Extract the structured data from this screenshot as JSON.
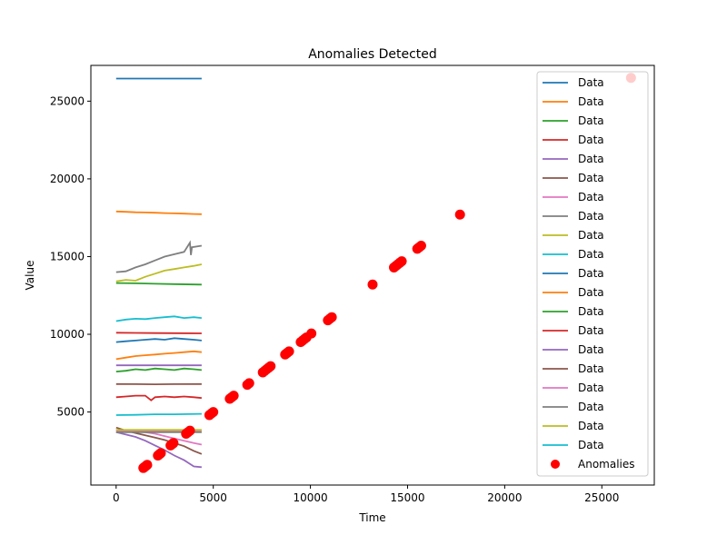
{
  "chart_data": {
    "type": "line",
    "title": "Anomalies Detected",
    "xlabel": "Time",
    "ylabel": "Value",
    "xlim": [
      -1300,
      27700
    ],
    "ylim": [
      300,
      27300
    ],
    "xticks": [
      0,
      5000,
      10000,
      15000,
      20000,
      25000
    ],
    "yticks": [
      5000,
      10000,
      15000,
      20000,
      25000
    ],
    "grid": false,
    "legend_position": "top-right",
    "series": [
      {
        "name": "Data",
        "color": "#1f77b4",
        "x": [
          0,
          4400
        ],
        "y": [
          26450,
          26450
        ]
      },
      {
        "name": "Data",
        "color": "#ff7f0e",
        "x": [
          0,
          500,
          1000,
          1500,
          2000,
          2500,
          3000,
          3500,
          4000,
          4400
        ],
        "y": [
          17900,
          17880,
          17850,
          17840,
          17820,
          17800,
          17780,
          17760,
          17740,
          17730
        ]
      },
      {
        "name": "Data",
        "color": "#2ca02c",
        "x": [
          0,
          1000,
          2000,
          3000,
          4400
        ],
        "y": [
          13300,
          13280,
          13250,
          13230,
          13200
        ]
      },
      {
        "name": "Data",
        "color": "#d62728",
        "x": [
          0,
          1000,
          2000,
          3000,
          4400
        ],
        "y": [
          10100,
          10090,
          10080,
          10070,
          10060
        ]
      },
      {
        "name": "Data",
        "color": "#9467bd",
        "x": [
          0,
          500,
          1000,
          1500,
          2000,
          2500,
          3000,
          3500,
          4000,
          4400
        ],
        "y": [
          3700,
          3550,
          3400,
          3150,
          2850,
          2550,
          2200,
          1900,
          1500,
          1450
        ]
      },
      {
        "name": "Data",
        "color": "#8c564b",
        "x": [
          0,
          1000,
          2000,
          3000,
          4400
        ],
        "y": [
          6800,
          6790,
          6780,
          6790,
          6800
        ]
      },
      {
        "name": "Data",
        "color": "#e377c2",
        "x": [
          0,
          500,
          1000,
          1500,
          2000,
          2500,
          3000,
          3500,
          4000,
          4400
        ],
        "y": [
          3850,
          3800,
          3750,
          3700,
          3600,
          3450,
          3300,
          3150,
          3000,
          2900
        ]
      },
      {
        "name": "Data",
        "color": "#7f7f7f",
        "x": [
          0,
          500,
          1000,
          1500,
          2000,
          2500,
          3000,
          3500,
          3800,
          3850,
          3900,
          4400
        ],
        "y": [
          14000,
          14050,
          14300,
          14500,
          14750,
          15000,
          15150,
          15300,
          15900,
          15100,
          15600,
          15700
        ]
      },
      {
        "name": "Data",
        "color": "#bcbd22",
        "x": [
          0,
          500,
          1000,
          1500,
          2000,
          2500,
          3000,
          3500,
          4000,
          4400
        ],
        "y": [
          13400,
          13500,
          13450,
          13700,
          13900,
          14100,
          14200,
          14300,
          14400,
          14500
        ]
      },
      {
        "name": "Data",
        "color": "#17becf",
        "x": [
          0,
          500,
          1000,
          1500,
          2000,
          2500,
          3000,
          3500,
          4000,
          4400
        ],
        "y": [
          10850,
          10950,
          11000,
          10980,
          11050,
          11100,
          11150,
          11050,
          11100,
          11050
        ]
      },
      {
        "name": "Data",
        "color": "#1f77b4",
        "x": [
          0,
          500,
          1000,
          1500,
          2000,
          2500,
          3000,
          3500,
          4000,
          4400
        ],
        "y": [
          9500,
          9550,
          9600,
          9650,
          9700,
          9650,
          9750,
          9700,
          9650,
          9600
        ]
      },
      {
        "name": "Data",
        "color": "#ff7f0e",
        "x": [
          0,
          500,
          1000,
          1500,
          2000,
          2500,
          3000,
          3500,
          4000,
          4400
        ],
        "y": [
          8400,
          8500,
          8600,
          8650,
          8700,
          8750,
          8800,
          8850,
          8900,
          8850
        ]
      },
      {
        "name": "Data",
        "color": "#2ca02c",
        "x": [
          0,
          500,
          1000,
          1500,
          2000,
          2500,
          3000,
          3500,
          4000,
          4400
        ],
        "y": [
          7600,
          7650,
          7750,
          7700,
          7800,
          7750,
          7700,
          7800,
          7750,
          7700
        ]
      },
      {
        "name": "Data",
        "color": "#d62728",
        "x": [
          0,
          500,
          1000,
          1500,
          1800,
          2000,
          2500,
          3000,
          3500,
          4000,
          4400
        ],
        "y": [
          5950,
          6000,
          6050,
          6050,
          5750,
          5950,
          6000,
          5950,
          6000,
          5950,
          5900
        ]
      },
      {
        "name": "Data",
        "color": "#9467bd",
        "x": [
          0,
          1000,
          2000,
          3000,
          4400
        ],
        "y": [
          8000,
          8000,
          8000,
          8000,
          8000
        ]
      },
      {
        "name": "Data",
        "color": "#8c564b",
        "x": [
          0,
          500,
          1000,
          1500,
          2000,
          2500,
          3000,
          3500,
          4000,
          4400
        ],
        "y": [
          4000,
          3800,
          3650,
          3500,
          3350,
          3200,
          3000,
          2800,
          2500,
          2300
        ]
      },
      {
        "name": "Data",
        "color": "#e377c2",
        "x": [
          0,
          1000,
          2000,
          3000,
          4400
        ],
        "y": [
          3800,
          3800,
          3800,
          3800,
          3800
        ]
      },
      {
        "name": "Data",
        "color": "#7f7f7f",
        "x": [
          0,
          1000,
          2000,
          3000,
          4400
        ],
        "y": [
          3700,
          3700,
          3700,
          3700,
          3700
        ]
      },
      {
        "name": "Data",
        "color": "#bcbd22",
        "x": [
          0,
          1000,
          2000,
          3000,
          4400
        ],
        "y": [
          3850,
          3850,
          3850,
          3850,
          3850
        ]
      },
      {
        "name": "Data",
        "color": "#17becf",
        "x": [
          0,
          1000,
          2000,
          3000,
          4400
        ],
        "y": [
          4800,
          4820,
          4850,
          4850,
          4880
        ]
      }
    ],
    "anomalies": {
      "name": "Anomalies",
      "color": "#ff0000",
      "points": [
        [
          1400,
          1400
        ],
        [
          1450,
          1450
        ],
        [
          1500,
          1500
        ],
        [
          1550,
          1550
        ],
        [
          1600,
          1600
        ],
        [
          2150,
          2200
        ],
        [
          2200,
          2250
        ],
        [
          2250,
          2300
        ],
        [
          2300,
          2350
        ],
        [
          2800,
          2850
        ],
        [
          2850,
          2900
        ],
        [
          2900,
          2950
        ],
        [
          2950,
          3000
        ],
        [
          3600,
          3600
        ],
        [
          3700,
          3700
        ],
        [
          3800,
          3800
        ],
        [
          4800,
          4800
        ],
        [
          4900,
          4900
        ],
        [
          5000,
          5000
        ],
        [
          5850,
          5850
        ],
        [
          5950,
          5950
        ],
        [
          6050,
          6050
        ],
        [
          6750,
          6750
        ],
        [
          6850,
          6850
        ],
        [
          7550,
          7550
        ],
        [
          7650,
          7650
        ],
        [
          7750,
          7750
        ],
        [
          7850,
          7850
        ],
        [
          7950,
          7950
        ],
        [
          8700,
          8700
        ],
        [
          8800,
          8800
        ],
        [
          8900,
          8900
        ],
        [
          9500,
          9500
        ],
        [
          9600,
          9600
        ],
        [
          9700,
          9700
        ],
        [
          9800,
          9800
        ],
        [
          10050,
          10050
        ],
        [
          10900,
          10900
        ],
        [
          11000,
          11000
        ],
        [
          11100,
          11100
        ],
        [
          13200,
          13200
        ],
        [
          14300,
          14300
        ],
        [
          14400,
          14400
        ],
        [
          14500,
          14500
        ],
        [
          14600,
          14600
        ],
        [
          14700,
          14700
        ],
        [
          15500,
          15500
        ],
        [
          15600,
          15600
        ],
        [
          15700,
          15700
        ],
        [
          17700,
          17700
        ],
        [
          26500,
          26500
        ]
      ]
    }
  }
}
